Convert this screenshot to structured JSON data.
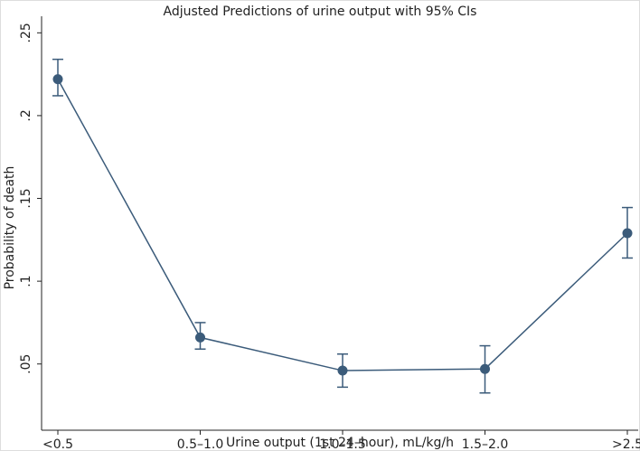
{
  "chart_data": {
    "type": "line",
    "title": "Adjusted Predictions of urine output with 95% CIs",
    "x_label": "Urine output (1st 24–hour), mL/kg/h",
    "y_label": "Probability of death",
    "categories": [
      "<0.5",
      "0.5–1.0",
      "1.0–1.5",
      "1.5–2.0",
      ">2.5"
    ],
    "series": [
      {
        "name": "Probability of death",
        "color": "#3b5b7a",
        "values": [
          0.222,
          0.066,
          0.046,
          0.047,
          0.129
        ],
        "ci_low": [
          0.212,
          0.059,
          0.036,
          0.0325,
          0.114
        ],
        "ci_high": [
          0.234,
          0.075,
          0.056,
          0.061,
          0.1445
        ]
      }
    ],
    "ylim": [
      0.01,
      0.26
    ],
    "yticks": [
      {
        "value": 0.05,
        "label": ".05"
      },
      {
        "value": 0.1,
        "label": ".1"
      },
      {
        "value": 0.15,
        "label": ".15"
      },
      {
        "value": 0.2,
        "label": ".2"
      },
      {
        "value": 0.25,
        "label": ".25"
      }
    ],
    "grid": false
  }
}
